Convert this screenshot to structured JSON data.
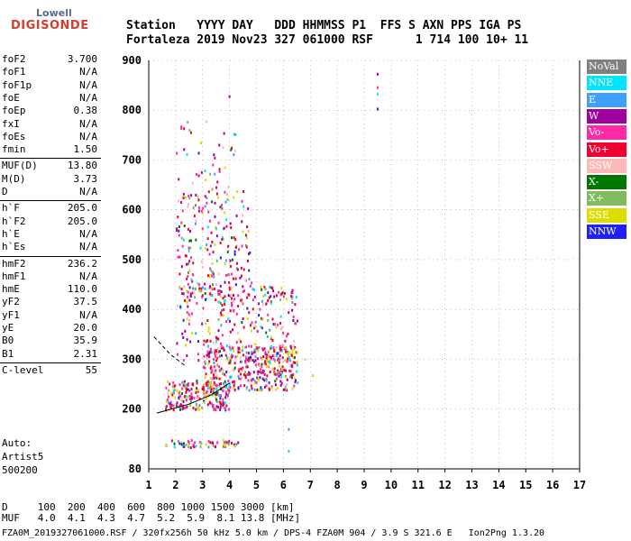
{
  "logo": {
    "top": "Lowell",
    "bottom": "DIGISONDE"
  },
  "header": {
    "line1": "Station   YYYY DAY   DDD HHMMSS P1  FFS S AXN PPS IGA PS",
    "line2": "Fortaleza 2019 Nov23 327 061000 RSF      1 714 100 10+ 11"
  },
  "params": [
    {
      "label": "foF2",
      "value": "3.700"
    },
    {
      "label": "foF1",
      "value": "N/A"
    },
    {
      "label": "foF1p",
      "value": "N/A"
    },
    {
      "label": "foE",
      "value": "N/A"
    },
    {
      "label": "foEp",
      "value": "0.38"
    },
    {
      "label": "fxI",
      "value": "N/A"
    },
    {
      "label": "foEs",
      "value": "N/A"
    },
    {
      "label": "fmin",
      "value": "1.50"
    },
    {
      "label": "MUF(D)",
      "value": "13.80"
    },
    {
      "label": "M(D)",
      "value": "3.73"
    },
    {
      "label": "D",
      "value": "N/A"
    },
    {
      "label": "h`F",
      "value": "205.0"
    },
    {
      "label": "h`F2",
      "value": "205.0"
    },
    {
      "label": "h`E",
      "value": "N/A"
    },
    {
      "label": "h`Es",
      "value": "N/A"
    },
    {
      "label": "hmF2",
      "value": "236.2"
    },
    {
      "label": "hmF1",
      "value": "N/A"
    },
    {
      "label": "hmE",
      "value": "110.0"
    },
    {
      "label": "yF2",
      "value": "37.5"
    },
    {
      "label": "yF1",
      "value": "N/A"
    },
    {
      "label": "yE",
      "value": "20.0"
    },
    {
      "label": "B0",
      "value": "35.9"
    },
    {
      "label": "B1",
      "value": "2.31"
    },
    {
      "label": "C-level",
      "value": "55"
    }
  ],
  "auto": {
    "line1": "Auto:",
    "line2": "Artist5",
    "line3": "500200"
  },
  "footer": {
    "d_line": "D     100  200  400  600  800 1000 1500 3000 [km]",
    "muf_line": "MUF   4.0  4.1  4.3  4.7  5.2  5.9  8.1 13.8 [MHz]",
    "info_line": "FZA0M_2019327061000.RSF / 320fx256h 50 kHz 5.0 km / DPS-4 FZA0M 904 / 3.9 S 321.6 E   Ion2Png 1.3.20"
  },
  "legend": [
    {
      "label": "NoVal",
      "color": "#808080"
    },
    {
      "label": "NNE",
      "color": "#00e5ff"
    },
    {
      "label": "E",
      "color": "#3f9fff"
    },
    {
      "label": "W",
      "color": "#a000a0"
    },
    {
      "label": "Vo-",
      "color": "#ff2aa8"
    },
    {
      "label": "Vo+",
      "color": "#ee0030"
    },
    {
      "label": "SSW",
      "color": "#ffb8b8"
    },
    {
      "label": "X-",
      "color": "#007800"
    },
    {
      "label": "X+",
      "color": "#80bb60"
    },
    {
      "label": "SSE",
      "color": "#dddd00"
    },
    {
      "label": "NNW",
      "color": "#2020ff"
    }
  ],
  "chart_data": {
    "type": "scatter",
    "title": "",
    "xlabel": "",
    "ylabel": "",
    "xlim": [
      1,
      17
    ],
    "ylim": [
      80,
      900
    ],
    "xticks": [
      1,
      2,
      3,
      4,
      5,
      6,
      7,
      8,
      9,
      10,
      11,
      12,
      13,
      14,
      15,
      16,
      17
    ],
    "yticks": [
      80,
      200,
      300,
      400,
      500,
      600,
      700,
      800,
      900
    ],
    "grid": true,
    "legend_position": "right",
    "clusters": [
      {
        "name": "Es",
        "x_range": [
          1.6,
          4.3
        ],
        "h_range": [
          125,
          140
        ],
        "density": 60
      },
      {
        "name": "F-trace-low",
        "x_range": [
          1.6,
          4.0
        ],
        "h_range": [
          200,
          260
        ],
        "density": 220
      },
      {
        "name": "F-main",
        "x_range": [
          3.0,
          6.5
        ],
        "h_range": [
          240,
          330
        ],
        "density": 380
      },
      {
        "name": "F-spread",
        "x_range": [
          2.0,
          6.5
        ],
        "h_range": [
          300,
          450
        ],
        "density": 260
      },
      {
        "name": "F-upper",
        "x_range": [
          2.0,
          4.8
        ],
        "h_range": [
          410,
          640
        ],
        "density": 230
      },
      {
        "name": "F-high",
        "x_range": [
          1.9,
          4.2
        ],
        "h_range": [
          640,
          780
        ],
        "density": 40
      }
    ],
    "points": [
      {
        "x": 9.5,
        "h": 875,
        "mode": "W"
      },
      {
        "x": 9.5,
        "h": 848,
        "mode": "Vo-"
      },
      {
        "x": 9.5,
        "h": 835,
        "mode": "NNE"
      },
      {
        "x": 9.5,
        "h": 805,
        "mode": "NNW"
      },
      {
        "x": 6.2,
        "h": 162,
        "mode": "E"
      },
      {
        "x": 6.2,
        "h": 118,
        "mode": "NNE"
      },
      {
        "x": 7.1,
        "h": 270,
        "mode": "SSE"
      },
      {
        "x": 6.8,
        "h": 302,
        "mode": "SSW"
      },
      {
        "x": 4.0,
        "h": 830,
        "mode": "W"
      }
    ],
    "trace": {
      "x": [
        1.3,
        2.5,
        3.3,
        4.0
      ],
      "h": [
        192,
        210,
        228,
        252
      ]
    },
    "dashed_trace": {
      "x": [
        1.2,
        1.8,
        2.4
      ],
      "h": [
        345,
        310,
        285
      ]
    }
  }
}
